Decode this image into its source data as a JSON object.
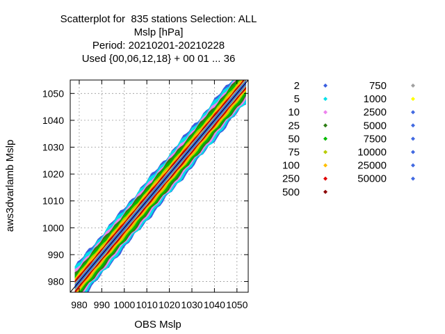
{
  "chart_data": {
    "type": "scatter",
    "title_lines": [
      "Scatterplot for  835 stations Selection: ALL",
      "Mslp [hPa]",
      "Period: 20210201-20210228",
      "Used {00,06,12,18} + 00 01 ... 36"
    ],
    "xlabel": "OBS Mslp",
    "ylabel": "aws3dvarlamb Mslp",
    "xlim": [
      976,
      1055
    ],
    "ylim": [
      976,
      1055
    ],
    "x_ticks": [
      980,
      990,
      1000,
      1010,
      1020,
      1030,
      1040,
      1050
    ],
    "x_tick_labels": [
      "980",
      "990",
      "1000",
      "1010",
      "1020",
      "1030",
      "1040",
      "1050"
    ],
    "y_ticks": [
      980,
      990,
      1000,
      1010,
      1020,
      1030,
      1040,
      1050
    ],
    "y_tick_labels": [
      "980",
      "990",
      "1000",
      "1010",
      "1020",
      "1030",
      "1040",
      "1050"
    ],
    "grid": true,
    "diagonal": true,
    "legend_position": "right",
    "legend": [
      {
        "label": "2",
        "color": "#3a5fe0",
        "width": 15.0
      },
      {
        "label": "5",
        "color": "#00e0e8",
        "width": 14.0
      },
      {
        "label": "10",
        "color": "#ee82ee",
        "width": 12.0
      },
      {
        "label": "25",
        "color": "#2e7d14",
        "width": 10.5
      },
      {
        "label": "50",
        "color": "#00bb00",
        "width": 9.0
      },
      {
        "label": "75",
        "color": "#b8cc00",
        "width": 7.2
      },
      {
        "label": "100",
        "color": "#ffbf00",
        "width": 6.0
      },
      {
        "label": "250",
        "color": "#e00000",
        "width": 4.6
      },
      {
        "label": "500",
        "color": "#8b0000",
        "width": 3.6
      },
      {
        "label": "750",
        "color": "#a0a0a0",
        "width": 3.0
      },
      {
        "label": "1000",
        "color": "#ffff00",
        "width": 2.6
      },
      {
        "label": "2500",
        "color": "#4169e1",
        "width": 2.2
      },
      {
        "label": "5000",
        "color": "#4169e1",
        "width": 1.9
      },
      {
        "label": "7500",
        "color": "#4169e1",
        "width": 1.7
      },
      {
        "label": "10000",
        "color": "#4169e1",
        "width": 1.5
      },
      {
        "label": "25000",
        "color": "#4169e1",
        "width": 1.3
      },
      {
        "label": "50000",
        "color": "#4169e1",
        "width": 1.1
      }
    ]
  }
}
